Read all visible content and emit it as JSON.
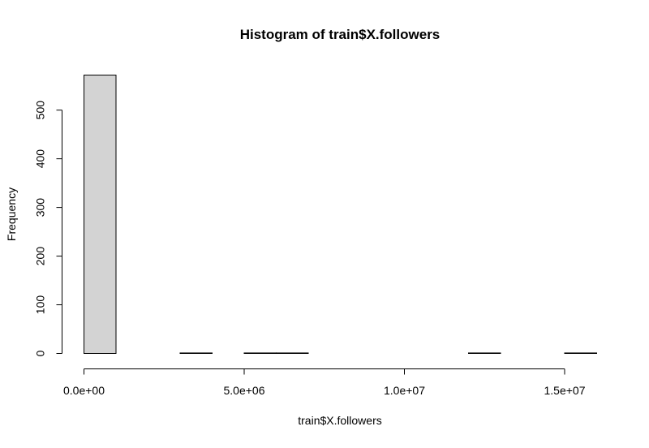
{
  "chart_data": {
    "type": "bar",
    "title": "Histogram of train$X.followers",
    "xlabel": "train$X.followers",
    "ylabel": "Frequency",
    "bin_width": 1000000,
    "bins": [
      {
        "start": 0,
        "end": 1000000,
        "count": 572
      },
      {
        "start": 1000000,
        "end": 2000000,
        "count": 0
      },
      {
        "start": 2000000,
        "end": 3000000,
        "count": 0
      },
      {
        "start": 3000000,
        "end": 4000000,
        "count": 1
      },
      {
        "start": 4000000,
        "end": 5000000,
        "count": 0
      },
      {
        "start": 5000000,
        "end": 6000000,
        "count": 1
      },
      {
        "start": 6000000,
        "end": 7000000,
        "count": 1
      },
      {
        "start": 7000000,
        "end": 8000000,
        "count": 0
      },
      {
        "start": 8000000,
        "end": 9000000,
        "count": 0
      },
      {
        "start": 9000000,
        "end": 10000000,
        "count": 0
      },
      {
        "start": 10000000,
        "end": 11000000,
        "count": 0
      },
      {
        "start": 11000000,
        "end": 12000000,
        "count": 0
      },
      {
        "start": 12000000,
        "end": 13000000,
        "count": 1
      },
      {
        "start": 13000000,
        "end": 14000000,
        "count": 0
      },
      {
        "start": 14000000,
        "end": 15000000,
        "count": 0
      },
      {
        "start": 15000000,
        "end": 16000000,
        "count": 1
      }
    ],
    "xlim": [
      0,
      16000000
    ],
    "ylim": [
      0,
      572
    ],
    "x_ticks": [
      {
        "value": 0,
        "label": "0.0e+00"
      },
      {
        "value": 5000000,
        "label": "5.0e+06"
      },
      {
        "value": 10000000,
        "label": "1.0e+07"
      },
      {
        "value": 15000000,
        "label": "1.5e+07"
      }
    ],
    "y_ticks": [
      {
        "value": 0,
        "label": "0"
      },
      {
        "value": 100,
        "label": "100"
      },
      {
        "value": 200,
        "label": "200"
      },
      {
        "value": 300,
        "label": "300"
      },
      {
        "value": 400,
        "label": "400"
      },
      {
        "value": 500,
        "label": "500"
      }
    ],
    "grid": false,
    "bar_fill": "#d3d3d3",
    "bar_stroke": "#000000"
  }
}
